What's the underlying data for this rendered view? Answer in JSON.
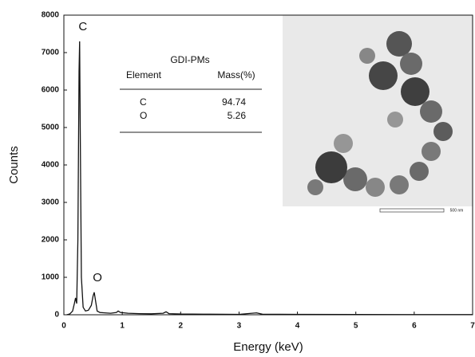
{
  "chart_data": {
    "type": "line",
    "x_label": "Energy (keV)",
    "y_label": "Counts",
    "xlim": [
      0,
      7
    ],
    "xticks": [
      0,
      1,
      2,
      3,
      4,
      5,
      6,
      7
    ],
    "ylim": [
      0,
      8000
    ],
    "yticks": [
      0,
      1000,
      2000,
      3000,
      4000,
      5000,
      6000,
      7000,
      8000
    ],
    "series": [
      {
        "color": "#111111",
        "x": [
          0.05,
          0.1,
          0.15,
          0.18,
          0.2,
          0.22,
          0.24,
          0.26,
          0.27,
          0.28,
          0.3,
          0.33,
          0.37,
          0.42,
          0.47,
          0.5,
          0.52,
          0.54,
          0.57,
          0.62,
          0.7,
          0.8,
          0.9,
          0.93,
          0.97,
          1.1,
          1.3,
          1.5,
          1.7,
          1.75,
          1.8,
          2.0,
          2.5,
          3.0,
          3.3,
          3.4,
          4,
          5,
          6,
          7
        ],
        "values": [
          0,
          20,
          100,
          300,
          450,
          300,
          2000,
          6500,
          7300,
          5000,
          1000,
          200,
          100,
          120,
          250,
          500,
          600,
          400,
          100,
          60,
          50,
          40,
          60,
          100,
          60,
          40,
          30,
          25,
          40,
          80,
          30,
          20,
          15,
          10,
          50,
          15,
          10,
          8,
          5,
          5
        ]
      }
    ],
    "annotations": [
      {
        "text": "C",
        "x": 0.27,
        "y": 7300
      },
      {
        "text": "O",
        "x": 0.52,
        "y": 600
      }
    ],
    "table": {
      "title": "GDI-PMs",
      "columns": [
        "Element",
        "Mass(%)"
      ],
      "rows": [
        [
          "C",
          "94.74"
        ],
        [
          "O",
          "5.26"
        ]
      ]
    },
    "inset_scale_label": "500 nm"
  }
}
